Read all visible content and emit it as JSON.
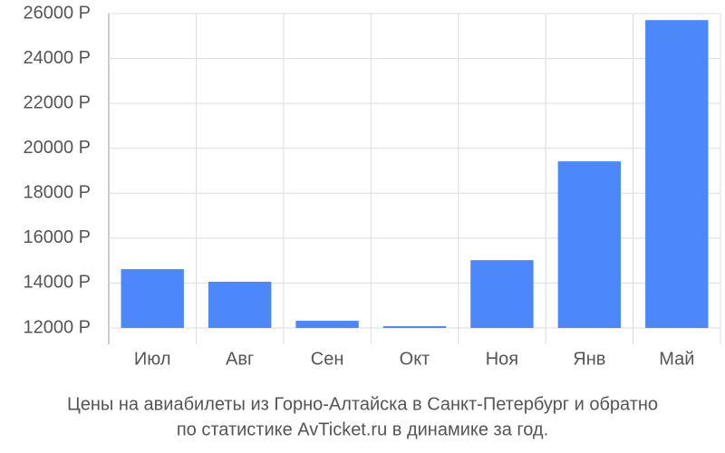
{
  "chart_data": {
    "type": "bar",
    "title": "Цены на авиабилеты из Горно-Алтайска в Санкт-Петербург и обратно",
    "subtitle": "по статистике AvTicket.ru в динамике за год.",
    "categories": [
      "Июл",
      "Авг",
      "Сен",
      "Окт",
      "Ноя",
      "Янв",
      "Май"
    ],
    "values": [
      14620,
      14060,
      12320,
      12080,
      15020,
      19420,
      25710
    ],
    "color": "#4d88fb",
    "ylim": [
      12000,
      26000
    ],
    "yticks": [
      {
        "value": 12000,
        "label": "12000 Р"
      },
      {
        "value": 14000,
        "label": "14000 Р"
      },
      {
        "value": 16000,
        "label": "16000 Р"
      },
      {
        "value": 18000,
        "label": "18000 Р"
      },
      {
        "value": 20000,
        "label": "20000 Р"
      },
      {
        "value": 22000,
        "label": "22000 Р"
      },
      {
        "value": 24000,
        "label": "24000 Р"
      },
      {
        "value": 26000,
        "label": "26000 Р"
      }
    ],
    "grid": true
  }
}
